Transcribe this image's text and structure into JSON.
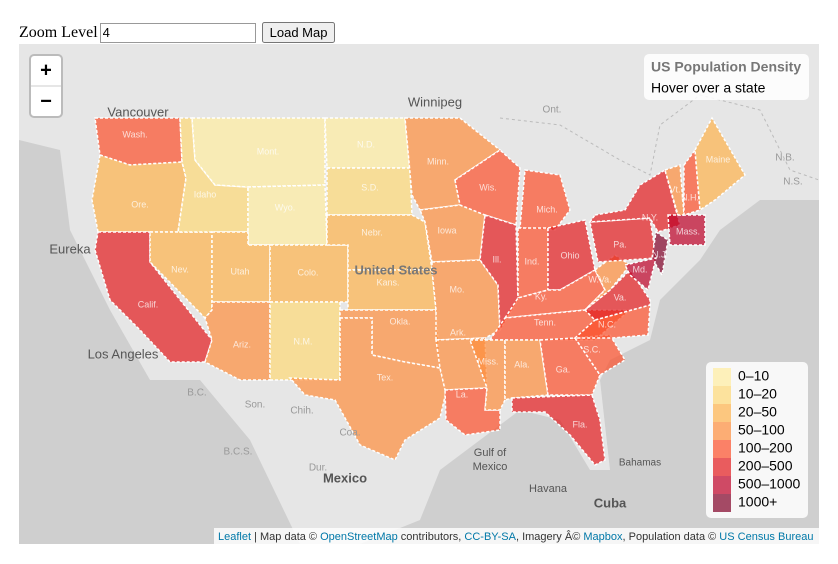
{
  "form": {
    "label": "Zoom Level",
    "input_value": "4",
    "button": "Load Map"
  },
  "map": {
    "zoom_in": "+",
    "zoom_out": "−",
    "info": {
      "title": "US Population Density",
      "hint": "Hover over a state"
    },
    "legend": {
      "grades": [
        {
          "label": "0–10",
          "color": "#FFEDA0"
        },
        {
          "label": "10–20",
          "color": "#FED976"
        },
        {
          "label": "20–50",
          "color": "#FEB24C"
        },
        {
          "label": "50–100",
          "color": "#FD8D3C"
        },
        {
          "label": "100–200",
          "color": "#FC4E2A"
        },
        {
          "label": "200–500",
          "color": "#E31A1C"
        },
        {
          "label": "500–1000",
          "color": "#BD0026"
        },
        {
          "label": "1000+",
          "color": "#800026"
        }
      ]
    },
    "place_labels": [
      "Vancouver",
      "Winnipeg",
      "Ont.",
      "Eureka",
      "Los Angeles",
      "United States",
      "Gulf of",
      "Mexico",
      "Mexico",
      "Havana",
      "Cuba",
      "Bahamas",
      "N.B.",
      "N.S.",
      "Son.",
      "Chih.",
      "Coa.",
      "Dur.",
      "B.C.",
      "B.C.S."
    ],
    "states": [
      {
        "label": "Wash.",
        "class": 4
      },
      {
        "label": "Ore.",
        "class": 2
      },
      {
        "label": "Calif.",
        "class": 5
      },
      {
        "label": "Nev.",
        "class": 2
      },
      {
        "label": "Idaho",
        "class": 1
      },
      {
        "label": "Mont.",
        "class": 0
      },
      {
        "label": "Wyo.",
        "class": 0
      },
      {
        "label": "Utah",
        "class": 2
      },
      {
        "label": "Colo.",
        "class": 2
      },
      {
        "label": "Ariz.",
        "class": 3
      },
      {
        "label": "N.M.",
        "class": 1
      },
      {
        "label": "N.D.",
        "class": 0
      },
      {
        "label": "S.D.",
        "class": 1
      },
      {
        "label": "Nebr.",
        "class": 2
      },
      {
        "label": "Kans.",
        "class": 2
      },
      {
        "label": "Okla.",
        "class": 3
      },
      {
        "label": "Tex.",
        "class": 3
      },
      {
        "label": "Minn.",
        "class": 3
      },
      {
        "label": "Iowa",
        "class": 3
      },
      {
        "label": "Mo.",
        "class": 3
      },
      {
        "label": "Ark.",
        "class": 3
      },
      {
        "label": "La.",
        "class": 4
      },
      {
        "label": "Wis.",
        "class": 4
      },
      {
        "label": "Ill.",
        "class": 5
      },
      {
        "label": "Mich.",
        "class": 4
      },
      {
        "label": "Ind.",
        "class": 4
      },
      {
        "label": "Ohio",
        "class": 5
      },
      {
        "label": "Ky.",
        "class": 4
      },
      {
        "label": "Tenn.",
        "class": 4
      },
      {
        "label": "Miss.",
        "class": 3
      },
      {
        "label": "Ala.",
        "class": 3
      },
      {
        "label": "Ga.",
        "class": 4
      },
      {
        "label": "Fla.",
        "class": 5
      },
      {
        "label": "S.C.",
        "class": 4
      },
      {
        "label": "N.C.",
        "class": 4
      },
      {
        "label": "Va.",
        "class": 5
      },
      {
        "label": "W.Va.",
        "class": 3
      },
      {
        "label": "Pa.",
        "class": 5
      },
      {
        "label": "N.Y.",
        "class": 5
      },
      {
        "label": "N.J.",
        "class": 7
      },
      {
        "label": "Md.",
        "class": 6
      },
      {
        "label": "Mass.",
        "class": 6
      },
      {
        "label": "Vt.",
        "class": 3
      },
      {
        "label": "N.H.",
        "class": 4
      },
      {
        "label": "Maine",
        "class": 2
      }
    ]
  },
  "attribution": [
    "Leaflet",
    " | Map data © ",
    "OpenStreetMap",
    " contributors, ",
    "CC-BY-SA",
    ", Imagery Â© ",
    "Mapbox",
    ", Population data © ",
    "US Census Bureau"
  ]
}
